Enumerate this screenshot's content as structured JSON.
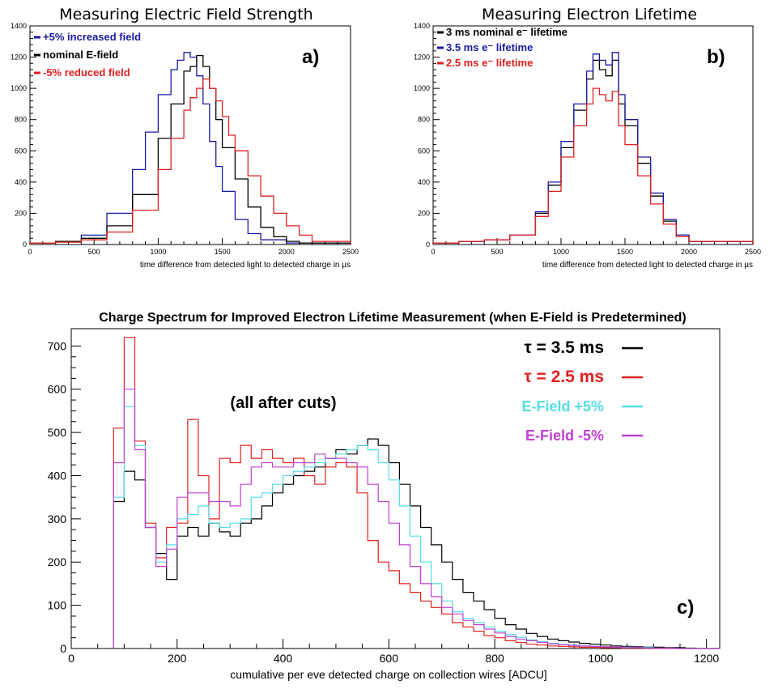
{
  "chart_data": [
    {
      "id": "a",
      "type": "line",
      "title": "Measuring Electric Field Strength",
      "xlabel": "time difference from detected light to detected charge in µs",
      "ylabel": "",
      "xlim": [
        0,
        2500
      ],
      "ylim": [
        0,
        1400
      ],
      "xticks": [
        0,
        500,
        1000,
        1500,
        2000,
        2500
      ],
      "yticks": [
        0,
        200,
        400,
        600,
        800,
        1000,
        1200,
        1400
      ],
      "panel_label": "a)",
      "legend_position": "top-left",
      "series": [
        {
          "name": "+5% increased field",
          "color": "#1a1aa0",
          "x": [
            0,
            200,
            400,
            600,
            800,
            900,
            1000,
            1100,
            1150,
            1200,
            1250,
            1300,
            1350,
            1400,
            1450,
            1500,
            1600,
            1700,
            1800,
            2000,
            2500
          ],
          "values": [
            10,
            20,
            60,
            200,
            480,
            720,
            960,
            1120,
            1180,
            1230,
            1200,
            1080,
            900,
            660,
            500,
            340,
            160,
            70,
            30,
            10,
            0
          ]
        },
        {
          "name": "nominal E-field",
          "color": "#000000",
          "x": [
            0,
            200,
            400,
            600,
            800,
            1000,
            1100,
            1200,
            1250,
            1300,
            1350,
            1400,
            1450,
            1500,
            1600,
            1700,
            1800,
            1900,
            2000,
            2100,
            2500
          ],
          "values": [
            10,
            20,
            40,
            120,
            320,
            680,
            900,
            1110,
            1140,
            1210,
            1140,
            1000,
            800,
            620,
            420,
            240,
            110,
            50,
            20,
            10,
            0
          ]
        },
        {
          "name": "-5% reduced field",
          "color": "#e02020",
          "x": [
            0,
            200,
            400,
            600,
            800,
            1000,
            1100,
            1200,
            1250,
            1300,
            1350,
            1400,
            1450,
            1500,
            1550,
            1600,
            1700,
            1800,
            1900,
            2000,
            2100,
            2200,
            2500
          ],
          "values": [
            10,
            15,
            30,
            80,
            220,
            480,
            680,
            860,
            940,
            1000,
            1060,
            1000,
            920,
            820,
            700,
            600,
            440,
            310,
            200,
            120,
            60,
            20,
            0
          ]
        }
      ]
    },
    {
      "id": "b",
      "type": "line",
      "title": "Measuring Electron Lifetime",
      "xlabel": "time difference from detected light to detected charge in µs",
      "ylabel": "",
      "xlim": [
        0,
        2500
      ],
      "ylim": [
        0,
        1400
      ],
      "xticks": [
        0,
        500,
        1000,
        1500,
        2000,
        2500
      ],
      "yticks": [
        0,
        200,
        400,
        600,
        800,
        1000,
        1200,
        1400
      ],
      "panel_label": "b)",
      "legend_position": "top-left",
      "series": [
        {
          "name": "3 ms nominal e⁻ lifetime",
          "color": "#000000",
          "x": [
            0,
            200,
            400,
            600,
            800,
            900,
            1000,
            1100,
            1200,
            1250,
            1300,
            1350,
            1400,
            1450,
            1500,
            1600,
            1700,
            1800,
            1900,
            2000,
            2500
          ],
          "values": [
            10,
            20,
            30,
            60,
            200,
            380,
            620,
            860,
            1060,
            1180,
            1120,
            1080,
            1180,
            900,
            760,
            520,
            310,
            150,
            60,
            20,
            0
          ]
        },
        {
          "name": "3.5 ms e⁻ lifetime",
          "color": "#1a1aa0",
          "x": [
            0,
            200,
            400,
            600,
            800,
            900,
            1000,
            1100,
            1200,
            1250,
            1300,
            1350,
            1400,
            1450,
            1500,
            1600,
            1700,
            1800,
            1900,
            2000,
            2500
          ],
          "values": [
            10,
            20,
            30,
            60,
            210,
            400,
            660,
            900,
            1110,
            1220,
            1180,
            1150,
            1230,
            960,
            800,
            560,
            330,
            160,
            60,
            20,
            0
          ]
        },
        {
          "name": "2.5 ms e⁻ lifetime",
          "color": "#e02020",
          "x": [
            0,
            200,
            400,
            600,
            800,
            900,
            1000,
            1100,
            1200,
            1250,
            1300,
            1350,
            1400,
            1450,
            1500,
            1600,
            1700,
            1800,
            1900,
            2000,
            2500
          ],
          "values": [
            10,
            20,
            30,
            60,
            180,
            340,
            560,
            760,
            900,
            1000,
            960,
            920,
            980,
            760,
            640,
            440,
            260,
            130,
            50,
            20,
            0
          ]
        }
      ]
    },
    {
      "id": "c",
      "type": "line",
      "title": "Charge Spectrum for Improved Electron Lifetime Measurement (when E-Field is Predetermined)",
      "xlabel": "cumulative per eve detected charge on collection wires  [ADCU]",
      "ylabel": "",
      "xlim": [
        0,
        1225
      ],
      "ylim": [
        0,
        740
      ],
      "xticks": [
        0,
        200,
        400,
        600,
        800,
        1000,
        1200
      ],
      "yticks": [
        0,
        100,
        200,
        300,
        400,
        500,
        600,
        700
      ],
      "panel_label": "c)",
      "annotation": "(all after cuts)",
      "legend_position": "top-right",
      "x": [
        80,
        100,
        120,
        140,
        160,
        180,
        200,
        220,
        240,
        260,
        280,
        300,
        320,
        340,
        360,
        380,
        400,
        420,
        440,
        460,
        480,
        500,
        520,
        540,
        560,
        580,
        600,
        620,
        640,
        660,
        680,
        700,
        720,
        740,
        760,
        780,
        800,
        820,
        840,
        860,
        880,
        900,
        920,
        940,
        960,
        980,
        1000,
        1020,
        1040,
        1060,
        1080,
        1100,
        1120,
        1140,
        1160,
        1180,
        1200
      ],
      "series": [
        {
          "name": "τ = 3.5 ms",
          "color": "#000000",
          "values": [
            340,
            410,
            390,
            280,
            220,
            160,
            260,
            280,
            260,
            290,
            270,
            260,
            290,
            300,
            330,
            360,
            380,
            400,
            410,
            420,
            440,
            460,
            450,
            470,
            485,
            470,
            430,
            380,
            330,
            280,
            240,
            200,
            160,
            130,
            110,
            90,
            70,
            55,
            45,
            35,
            28,
            22,
            18,
            15,
            12,
            10,
            8,
            6,
            5,
            4,
            3,
            3,
            2,
            2,
            1,
            0,
            0
          ]
        },
        {
          "name": "τ = 2.5 ms",
          "color": "#e02020",
          "values": [
            510,
            720,
            480,
            290,
            210,
            280,
            290,
            530,
            400,
            300,
            440,
            430,
            470,
            440,
            460,
            440,
            430,
            440,
            400,
            380,
            420,
            430,
            420,
            360,
            250,
            200,
            180,
            150,
            130,
            110,
            95,
            80,
            60,
            50,
            40,
            30,
            25,
            18,
            14,
            10,
            8,
            6,
            5,
            4,
            3,
            3,
            2,
            2,
            1,
            1,
            1,
            0,
            0,
            0,
            0,
            0,
            0
          ]
        },
        {
          "name": "E-Field +5%",
          "color": "#55dde6",
          "values": [
            350,
            560,
            470,
            280,
            200,
            240,
            300,
            310,
            330,
            290,
            280,
            290,
            300,
            350,
            360,
            380,
            400,
            410,
            420,
            430,
            440,
            450,
            460,
            470,
            460,
            430,
            390,
            330,
            260,
            200,
            150,
            110,
            85,
            70,
            60,
            50,
            40,
            32,
            26,
            20,
            16,
            12,
            10,
            8,
            6,
            5,
            4,
            3,
            3,
            2,
            2,
            1,
            1,
            0,
            0,
            0,
            0
          ]
        },
        {
          "name": "E-Field -5%",
          "color": "#c040d0",
          "values": [
            430,
            600,
            460,
            280,
            190,
            230,
            350,
            360,
            360,
            340,
            340,
            330,
            380,
            420,
            430,
            420,
            420,
            430,
            430,
            450,
            440,
            440,
            430,
            420,
            380,
            340,
            290,
            240,
            190,
            150,
            120,
            95,
            80,
            65,
            55,
            45,
            36,
            28,
            22,
            18,
            14,
            11,
            9,
            7,
            6,
            5,
            4,
            3,
            2,
            2,
            1,
            1,
            1,
            0,
            0,
            0,
            0
          ]
        }
      ]
    }
  ]
}
